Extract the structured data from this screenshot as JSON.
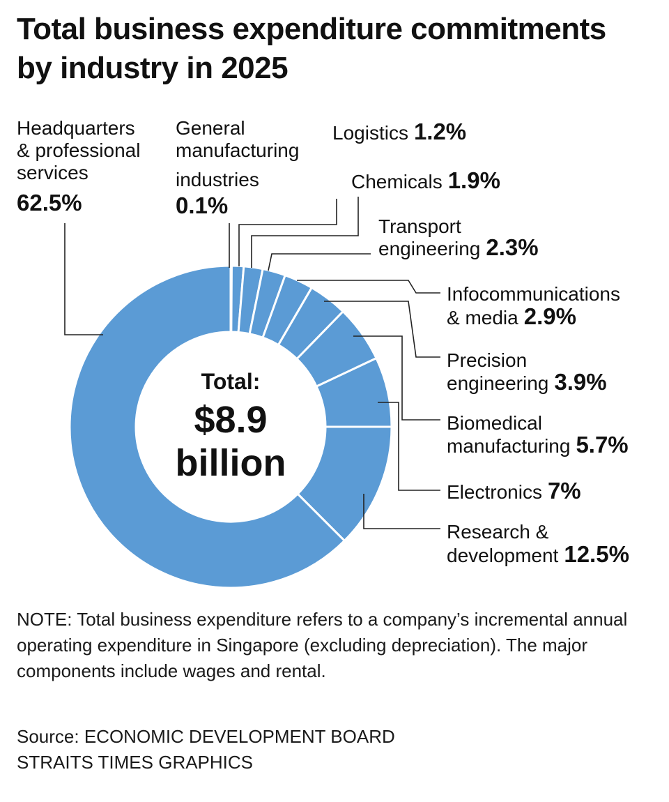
{
  "chart_data": {
    "type": "pie",
    "title_lines": [
      "Total business expenditure commitments",
      "by industry in 2025"
    ],
    "center_text": {
      "label": "Total:",
      "value": "$8.9",
      "unit": "billion"
    },
    "color": "#5b9bd5",
    "slices": [
      {
        "name_lines": [
          "General",
          "manufacturing",
          "industries"
        ],
        "value": 0.1,
        "label": "0.1%"
      },
      {
        "name_lines": [
          "Logistics"
        ],
        "value": 1.2,
        "label": "1.2%"
      },
      {
        "name_lines": [
          "Chemicals"
        ],
        "value": 1.9,
        "label": "1.9%"
      },
      {
        "name_lines": [
          "Transport",
          "engineering"
        ],
        "value": 2.3,
        "label": "2.3%"
      },
      {
        "name_lines": [
          "Infocommunications",
          "& media"
        ],
        "value": 2.9,
        "label": "2.9%"
      },
      {
        "name_lines": [
          "Precision",
          "engineering"
        ],
        "value": 3.9,
        "label": "3.9%"
      },
      {
        "name_lines": [
          "Biomedical",
          "manufacturing"
        ],
        "value": 5.7,
        "label": "5.7%"
      },
      {
        "name_lines": [
          "Electronics"
        ],
        "value": 7,
        "label": "7%"
      },
      {
        "name_lines": [
          "Research &",
          "development"
        ],
        "value": 12.5,
        "label": "12.5%"
      },
      {
        "name_lines": [
          "Headquarters",
          "& professional",
          "services"
        ],
        "value": 62.5,
        "label": "62.5%"
      }
    ]
  },
  "note": "NOTE: Total business expenditure refers to a company’s incremental annual operating expenditure in Singapore (excluding depreciation). The major components include wages and rental.",
  "source_lines": [
    "Source: ECONOMIC DEVELOPMENT BOARD",
    "STRAITS TIMES GRAPHICS"
  ]
}
